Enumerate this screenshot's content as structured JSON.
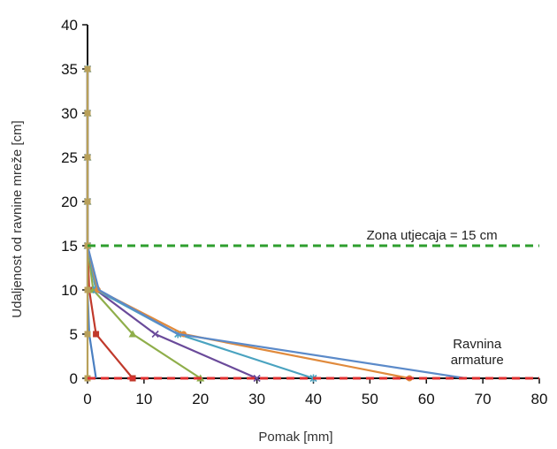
{
  "chart_data": {
    "type": "line",
    "title": "",
    "xlabel": "Pomak [mm]",
    "ylabel": "Udaljenost od ravnine mreže  [cm]",
    "xlim": [
      0,
      80
    ],
    "ylim": [
      0,
      40
    ],
    "xticks": [
      "0",
      "10",
      "20",
      "30",
      "40",
      "50",
      "60",
      "70",
      "80"
    ],
    "yticks": [
      "0",
      "5",
      "10",
      "15",
      "20",
      "25",
      "30",
      "35",
      "40"
    ],
    "grid": false,
    "legend": "none",
    "series": [
      {
        "color": "#4a7fc1",
        "marker": "none",
        "x": [
          1.5,
          0.3,
          0,
          0,
          0,
          0,
          0,
          0
        ],
        "y": [
          0,
          5,
          10,
          15,
          20,
          25,
          30,
          35
        ]
      },
      {
        "color": "#c0392b",
        "marker": "square",
        "x": [
          8,
          1.5,
          0.3,
          0,
          0,
          0,
          0,
          0
        ],
        "y": [
          0,
          5,
          10,
          15,
          20,
          25,
          30,
          35
        ]
      },
      {
        "color": "#8fae4a",
        "marker": "triangle",
        "x": [
          20,
          8,
          1,
          0,
          0,
          0,
          0,
          0
        ],
        "y": [
          0,
          5,
          10,
          15,
          20,
          25,
          30,
          35
        ]
      },
      {
        "color": "#6a4a9a",
        "marker": "x",
        "x": [
          30,
          12,
          1.5,
          0,
          0,
          0,
          0,
          0
        ],
        "y": [
          0,
          5,
          10,
          15,
          20,
          25,
          30,
          35
        ]
      },
      {
        "color": "#4aa3c0",
        "marker": "star",
        "x": [
          40,
          16,
          1.5,
          0,
          0,
          0,
          0,
          0
        ],
        "y": [
          0,
          5,
          10,
          15,
          20,
          25,
          30,
          35
        ]
      },
      {
        "color": "#e08a3c",
        "marker": "circle",
        "x": [
          57,
          17,
          1.8,
          0,
          0,
          0,
          0,
          0
        ],
        "y": [
          0,
          5,
          10,
          15,
          20,
          25,
          30,
          35
        ]
      },
      {
        "color": "#5b8ac9",
        "marker": "none",
        "x": [
          67,
          16,
          2,
          0,
          0,
          0,
          0,
          0
        ],
        "y": [
          0,
          5,
          10,
          15,
          20,
          25,
          30,
          35
        ]
      },
      {
        "color": "#b8a05a",
        "marker": "square",
        "x": [
          0,
          0,
          0,
          0,
          0,
          0,
          0,
          0
        ],
        "y": [
          0,
          5,
          10,
          15,
          20,
          25,
          30,
          35
        ]
      }
    ],
    "reference_lines": [
      {
        "orientation": "horizontal",
        "y": 15,
        "color": "#2e9e2e",
        "style": "dashed"
      },
      {
        "orientation": "horizontal",
        "y": 0,
        "color": "#e03030",
        "style": "dashed"
      }
    ],
    "annotations": [
      {
        "name": "zone-annotation",
        "text": "Zona utjecaja = 15 cm",
        "x": 61,
        "y": 15.7,
        "anchor": "middle"
      },
      {
        "name": "plane-annotation-line1",
        "text": "Ravnina",
        "x": 69,
        "y": 3.4,
        "anchor": "middle"
      },
      {
        "name": "plane-annotation-line2",
        "text": "armature",
        "x": 69,
        "y": 1.6,
        "anchor": "middle"
      }
    ]
  }
}
